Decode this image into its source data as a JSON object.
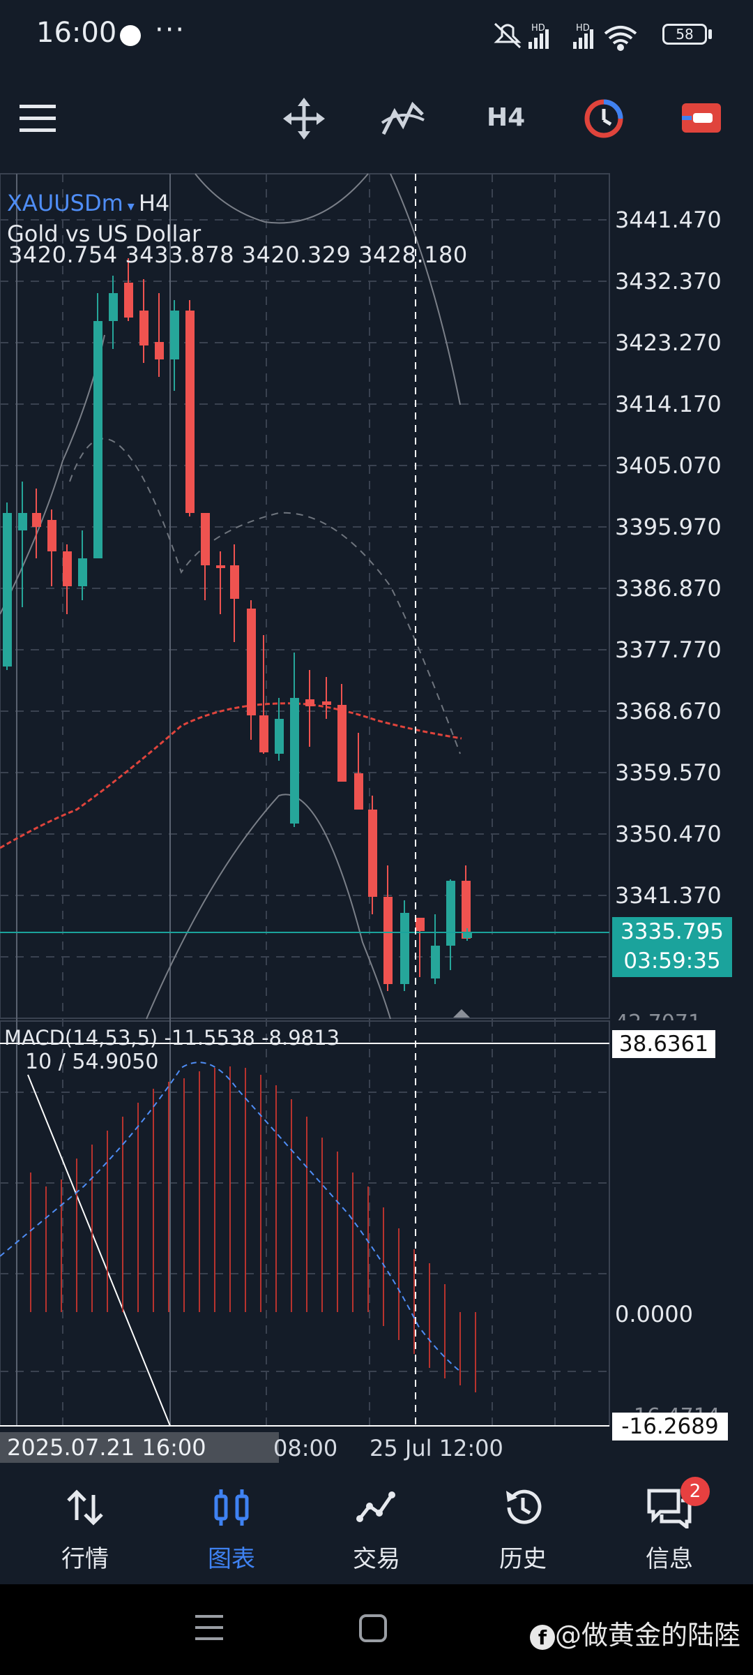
{
  "status_bar": {
    "time": "16:00",
    "dots": "···",
    "signal_labels": [
      "HD",
      "HD"
    ],
    "battery": "58"
  },
  "toolbar": {
    "timeframe": "H4",
    "icons": [
      "menu-icon",
      "crosshair-move-icon",
      "indicators-icon",
      "timeframe-button",
      "one-click-trading-icon",
      "chart-type-icon"
    ],
    "accent_colors": {
      "clock": "#e0443c",
      "trade": "#e0443c"
    }
  },
  "chart": {
    "symbol": "XAUUSDm",
    "symbol_caret": "▾",
    "timeframe": "H4",
    "description": "Gold vs US Dollar",
    "ohlc": "3420.754 3433.878 3420.329 3428.180",
    "price_labels": [
      "3441.470",
      "3432.370",
      "3423.270",
      "3414.170",
      "3405.070",
      "3395.970",
      "3386.870",
      "3377.770",
      "3368.670",
      "3359.570",
      "3350.470",
      "3341.370"
    ],
    "current_price": "3335.795",
    "countdown": "03:59:35",
    "colors": {
      "bull": "#26a69a",
      "bear": "#ef5350",
      "ma": "#e0443c",
      "grid": "#3a4250"
    }
  },
  "macd": {
    "title": "MACD(14,53,5) -11.5538 -8.9813",
    "cursor_readout": "10 / 54.9050",
    "high_label": "38.6361",
    "zero_label": "0.0000",
    "low_label": "-16.2689",
    "hidden_top_label": "42.7071",
    "hidden_bottom_label": "-16.4714"
  },
  "time_axis": {
    "tooltip": "2025.07.21 16:00",
    "label_a": "08:00",
    "label_b": "25 Jul 12:00"
  },
  "bottom_nav": {
    "items": [
      {
        "label": "行情",
        "icon": "quotes-icon"
      },
      {
        "label": "图表",
        "icon": "chart-icon"
      },
      {
        "label": "交易",
        "icon": "trade-icon"
      },
      {
        "label": "历史",
        "icon": "history-icon"
      },
      {
        "label": "信息",
        "icon": "messages-icon"
      }
    ],
    "active_index": 1,
    "badge": "2"
  },
  "watermark": "@做黄金的陆陸"
}
